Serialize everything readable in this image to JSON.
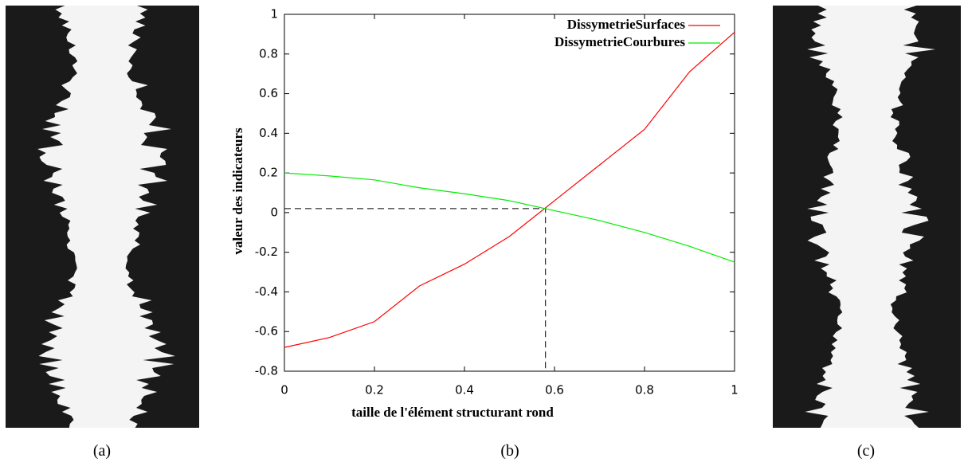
{
  "chart_data": {
    "type": "line",
    "xlabel": "taille de l'élément structurant rond",
    "ylabel": "valeur des indicateurs",
    "xlim": [
      0,
      1
    ],
    "ylim": [
      -0.8,
      1
    ],
    "xticks": [
      0,
      0.2,
      0.4,
      0.6,
      0.8,
      1
    ],
    "yticks": [
      -0.8,
      -0.6,
      -0.4,
      -0.2,
      0,
      0.2,
      0.4,
      0.6,
      0.8,
      1
    ],
    "x": [
      0,
      0.1,
      0.2,
      0.3,
      0.4,
      0.5,
      0.6,
      0.7,
      0.8,
      0.9,
      1
    ],
    "series": [
      {
        "name": "DissymetrieSurfaces",
        "color": "#ff0000",
        "values": [
          -0.68,
          -0.63,
          -0.55,
          -0.37,
          -0.26,
          -0.12,
          0.06,
          0.24,
          0.42,
          0.71,
          0.91
        ]
      },
      {
        "name": "DissymetrieCourbures",
        "color": "#00ee00",
        "values": [
          0.2,
          0.185,
          0.165,
          0.125,
          0.095,
          0.06,
          0.01,
          -0.04,
          -0.1,
          -0.17,
          -0.25
        ]
      }
    ],
    "reference_point": {
      "x": 0.58,
      "y": 0.02
    },
    "legend": "upper right"
  },
  "captions": [
    "(a)",
    "(b)",
    "(c)"
  ]
}
